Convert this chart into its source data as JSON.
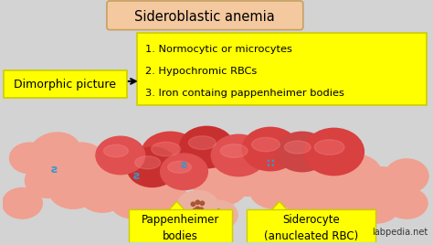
{
  "bg_color": "#d3d3d3",
  "title": "Sideroblastic anemia",
  "title_box_color": "#f4c9a0",
  "title_box_edge": "#c8a060",
  "yellow_box_color": "#ffff00",
  "yellow_box_edge": "#cccc00",
  "dimorphic_label": "Dimorphic picture",
  "bullet_points": [
    "1. Normocytic or microcytes",
    "2. Hypochromic RBCs",
    "3. Iron containg pappenheimer bodies"
  ],
  "label_pappenheimer": "Pappenheimer\nbodies",
  "label_siderocyte": "Siderocyte\n(anucleated RBC)",
  "watermark": "labpedia.net",
  "rbc_colors_light": [
    "#f0a090",
    "#e8907a",
    "#f5b0a0",
    "#ebb0a0",
    "#f2c0b0"
  ],
  "rbc_colors_dark": [
    "#d94040",
    "#c83030",
    "#e05050",
    "#cc4444"
  ],
  "blue_dot_color": "#3399cc"
}
